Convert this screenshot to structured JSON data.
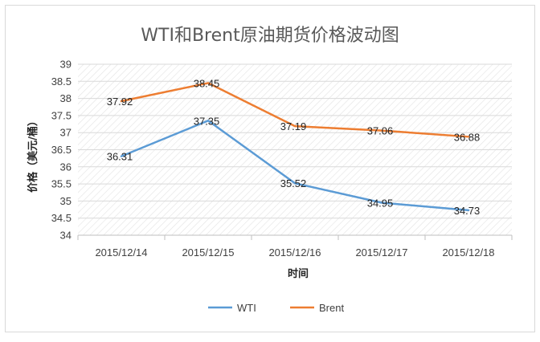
{
  "chart_data": {
    "type": "line",
    "title": "WTI和Brent原油期货价格波动图",
    "xlabel": "时间",
    "ylabel": "价格（美元/桶）",
    "categories": [
      "2015/12/14",
      "2015/12/15",
      "2015/12/16",
      "2015/12/17",
      "2015/12/18"
    ],
    "ylim": [
      34,
      39
    ],
    "ystep": 0.5,
    "y_tick_labels": [
      "34",
      "34.5",
      "35",
      "35.5",
      "36",
      "36.5",
      "37",
      "37.5",
      "38",
      "38.5",
      "39"
    ],
    "grid": true,
    "legend_position": "bottom",
    "series": [
      {
        "name": "WTI",
        "color": "#5b9bd5",
        "values": [
          36.31,
          37.35,
          35.52,
          34.95,
          34.73
        ],
        "labels": [
          "36.31",
          "37.35",
          "35.52",
          "34.95",
          "34.73"
        ]
      },
      {
        "name": "Brent",
        "color": "#ed7d31",
        "values": [
          37.92,
          38.45,
          37.19,
          37.06,
          36.88
        ],
        "labels": [
          "37.92",
          "38.45",
          "37.19",
          "37.06",
          "36.88"
        ]
      }
    ]
  }
}
